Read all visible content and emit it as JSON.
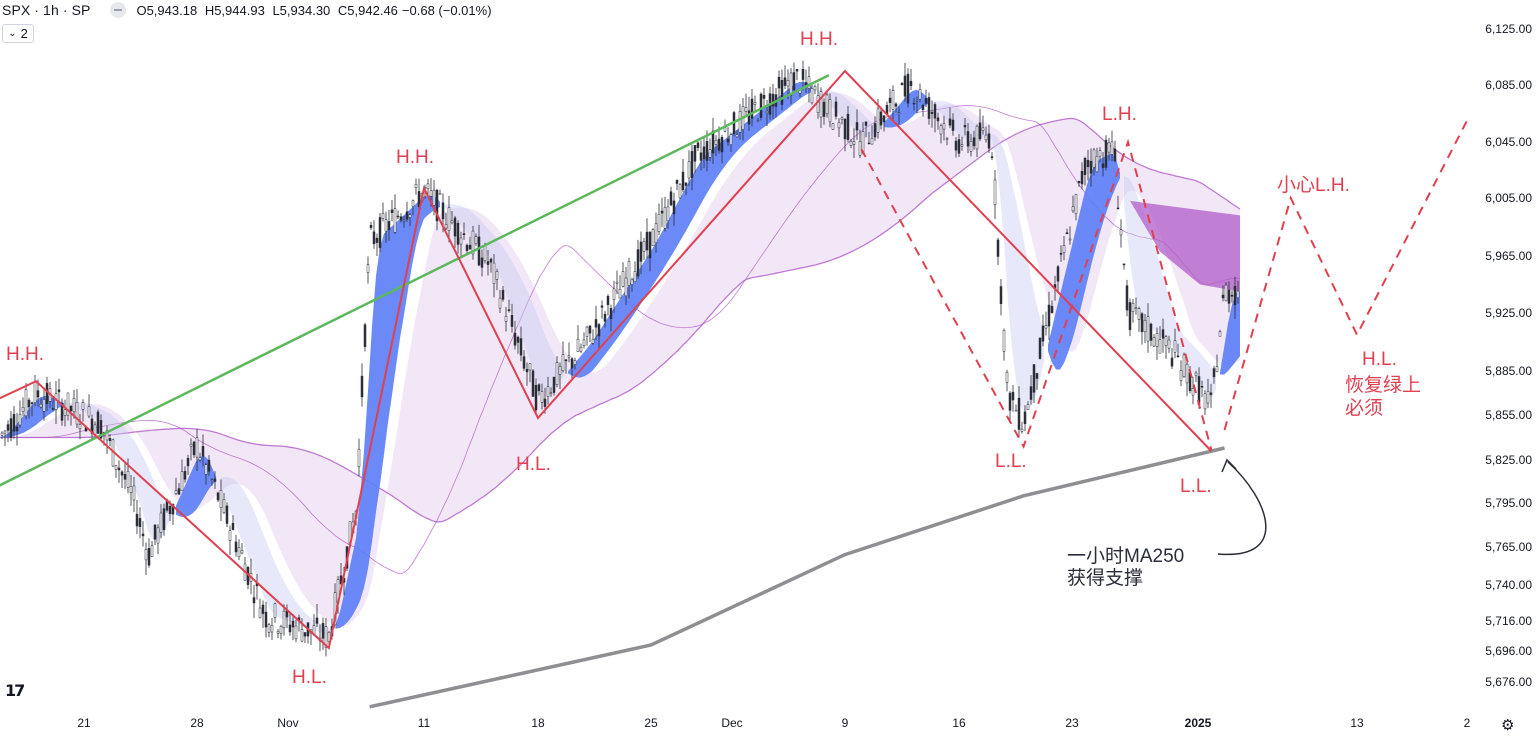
{
  "header": {
    "symbol": "SPX · 1h · SP",
    "open_label": "O",
    "open": "5,943.18",
    "high_label": "H",
    "high": "5,944.93",
    "low_label": "L",
    "low": "5,934.30",
    "close_label": "C",
    "close": "5,942.46",
    "change": "−0.68 (−0.01%)"
  },
  "indicator_count_button": "2",
  "logo": "17",
  "icons": {
    "visibility": "eye-icon",
    "settings": "gear-icon",
    "collapse": "chevron-down-icon"
  },
  "colors": {
    "annotation_red": "#e0404f",
    "trendline_green": "#5cb85c",
    "ma250_gray": "#8e8e93",
    "ribbon_blue": "#5b7df7",
    "ribbon_purple": "#b05cc8",
    "band_lavender": "#eedff3"
  },
  "chart_data": {
    "type": "candlestick",
    "symbol": "SPX",
    "timeframe": "1h",
    "ylim": [
      5660,
      6135
    ],
    "y_ticks": [
      "6,125.00",
      "6,085.00",
      "6,045.00",
      "6,005.00",
      "5,965.00",
      "5,925.00",
      "5,885.00",
      "5,855.00",
      "5,825.00",
      "5,795.00",
      "5,765.00",
      "5,740.00",
      "5,716.00",
      "5,696.00",
      "5,676.00"
    ],
    "x_ticks": [
      "21",
      "28",
      "Nov",
      "11",
      "18",
      "25",
      "Dec",
      "9",
      "16",
      "23",
      "2025",
      "13",
      "2"
    ],
    "bold_x_tick": "2025",
    "price_path": [
      {
        "t": "Oct 14",
        "price": 5840
      },
      {
        "t": "Oct 17",
        "price": 5870
      },
      {
        "t": "Oct 22",
        "price": 5850
      },
      {
        "t": "Oct 24",
        "price": 5800
      },
      {
        "t": "Oct 25",
        "price": 5760
      },
      {
        "t": "Oct 28",
        "price": 5835
      },
      {
        "t": "Oct 31",
        "price": 5720
      },
      {
        "t": "Nov 4",
        "price": 5705
      },
      {
        "t": "Nov 6",
        "price": 5790
      },
      {
        "t": "Nov 7",
        "price": 5975
      },
      {
        "t": "Nov 11",
        "price": 6010
      },
      {
        "t": "Nov 15",
        "price": 5960
      },
      {
        "t": "Nov 18",
        "price": 5865
      },
      {
        "t": "Nov 21",
        "price": 5905
      },
      {
        "t": "Nov 25",
        "price": 5975
      },
      {
        "t": "Nov 29",
        "price": 6035
      },
      {
        "t": "Dec 6",
        "price": 6090
      },
      {
        "t": "Dec 10",
        "price": 6045
      },
      {
        "t": "Dec 13",
        "price": 6085
      },
      {
        "t": "Dec 16",
        "price": 6045
      },
      {
        "t": "Dec 18",
        "price": 6050
      },
      {
        "t": "Dec 19",
        "price": 5870
      },
      {
        "t": "Dec 20",
        "price": 5850
      },
      {
        "t": "Dec 24",
        "price": 6030
      },
      {
        "t": "Dec 26",
        "price": 6040
      },
      {
        "t": "Dec 27",
        "price": 5925
      },
      {
        "t": "Dec 30",
        "price": 5900
      },
      {
        "t": "Jan 2",
        "price": 5860
      },
      {
        "t": "Jan 3",
        "price": 5940
      }
    ],
    "ma250": [
      {
        "t": "Nov 7",
        "price": 5660
      },
      {
        "t": "Nov 25",
        "price": 5700
      },
      {
        "t": "Dec 9",
        "price": 5760
      },
      {
        "t": "Dec 20",
        "price": 5800
      },
      {
        "t": "Jan 3",
        "price": 5833
      }
    ],
    "zigzag": [
      {
        "t": "Oct 11",
        "price": 5855
      },
      {
        "t": "Oct 17",
        "price": 5878
      },
      {
        "t": "Nov 4",
        "price": 5698
      },
      {
        "t": "Nov 11",
        "price": 6012
      },
      {
        "t": "Nov 18",
        "price": 5853
      },
      {
        "t": "Dec 9",
        "price": 6095
      },
      {
        "t": "Jan 2",
        "price": 5831
      }
    ],
    "zigzag_dashed": [
      {
        "t": "Dec 10",
        "price": 6040
      },
      {
        "t": "Dec 20",
        "price": 5834
      },
      {
        "t": "Dec 27",
        "price": 6045
      },
      {
        "t": "Jan 2",
        "price": 5832
      }
    ],
    "projection_dashed": [
      {
        "t": "Jan 3",
        "price": 5845
      },
      {
        "t": "Jan 8",
        "price": 6005
      },
      {
        "t": "Jan 13",
        "price": 5910
      },
      {
        "t": "Jan 20",
        "price": 6060
      }
    ],
    "green_trendline": [
      {
        "t": "Oct 11",
        "price": 5795
      },
      {
        "t": "Dec 8",
        "price": 6092
      }
    ],
    "annotations": [
      {
        "id": "hh1",
        "text": "H.H."
      },
      {
        "id": "hl1",
        "text": "H.L."
      },
      {
        "id": "hh2",
        "text": "H.H."
      },
      {
        "id": "hl2",
        "text": "H.L."
      },
      {
        "id": "hh3",
        "text": "H.H."
      },
      {
        "id": "ll1",
        "text": "L.L."
      },
      {
        "id": "lh1",
        "text": "L.H."
      },
      {
        "id": "ll2",
        "text": "L.L."
      },
      {
        "id": "lh_warn",
        "text": "小心L.H."
      },
      {
        "id": "hl3",
        "text": "H.L."
      },
      {
        "id": "hl3_note1",
        "text": "恢复绿上"
      },
      {
        "id": "hl3_note2",
        "text": "必须"
      },
      {
        "id": "ma_note1",
        "text": "一小时MA250"
      },
      {
        "id": "ma_note2",
        "text": "获得支撑"
      }
    ]
  }
}
